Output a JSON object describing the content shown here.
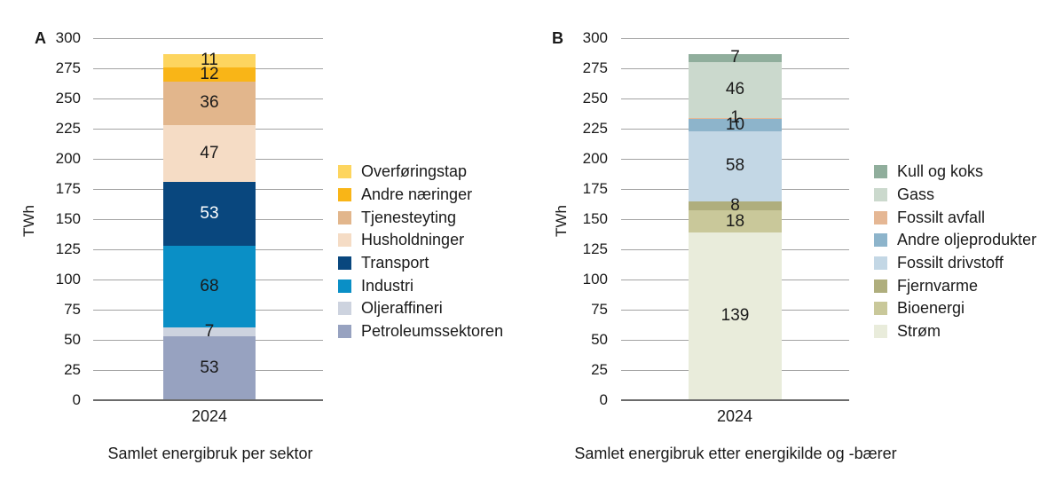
{
  "chart_data": [
    {
      "type": "bar",
      "stacked": true,
      "panel_label": "A",
      "title": "Samlet energibruk per sektor",
      "ylabel": "TWh",
      "categories": [
        "2024"
      ],
      "ylim": [
        0,
        300
      ],
      "ytick_interval": 25,
      "yticks": [
        0,
        25,
        50,
        75,
        100,
        125,
        150,
        175,
        200,
        225,
        250,
        275,
        300
      ],
      "grid": true,
      "legend_position": "right",
      "legend": [
        "Overføringstap",
        "Andre næringer",
        "Tjenesteyting",
        "Husholdninger",
        "Transport",
        "Industri",
        "Oljeraffineri",
        "Petroleumssektoren"
      ],
      "series": [
        {
          "name": "Petroleumssektoren",
          "value": 53,
          "color": "#97a2c0",
          "value_text_color": "#1a1a1a"
        },
        {
          "name": "Oljeraffineri",
          "value": 7,
          "color": "#cdd3df",
          "value_text_color": "#1a1a1a"
        },
        {
          "name": "Industri",
          "value": 68,
          "color": "#0a8fc6",
          "value_text_color": "#1a1a1a"
        },
        {
          "name": "Transport",
          "value": 53,
          "color": "#09477e",
          "value_text_color": "#ffffff"
        },
        {
          "name": "Husholdninger",
          "value": 47,
          "color": "#f5dcc5",
          "value_text_color": "#1a1a1a"
        },
        {
          "name": "Tjenesteyting",
          "value": 36,
          "color": "#e2b68c",
          "value_text_color": "#1a1a1a"
        },
        {
          "name": "Andre næringer",
          "value": 12,
          "color": "#f9b517",
          "value_text_color": "#1a1a1a"
        },
        {
          "name": "Overføringstap",
          "value": 11,
          "color": "#fdd55f",
          "value_text_color": "#1a1a1a"
        }
      ]
    },
    {
      "type": "bar",
      "stacked": true,
      "panel_label": "B",
      "title": "Samlet energibruk etter energikilde og -bærer",
      "ylabel": "TWh",
      "categories": [
        "2024"
      ],
      "ylim": [
        0,
        300
      ],
      "ytick_interval": 25,
      "yticks": [
        0,
        25,
        50,
        75,
        100,
        125,
        150,
        175,
        200,
        225,
        250,
        275,
        300
      ],
      "grid": true,
      "legend_position": "right",
      "legend": [
        "Kull og koks",
        "Gass",
        "Fossilt avfall",
        "Andre oljeprodukter",
        "Fossilt drivstoff",
        "Fjernvarme",
        "Bioenergi",
        "Strøm"
      ],
      "series": [
        {
          "name": "Strøm",
          "value": 139,
          "color": "#e9ecdb",
          "value_text_color": "#1a1a1a"
        },
        {
          "name": "Bioenergi",
          "value": 18,
          "color": "#c9c89a",
          "value_text_color": "#1a1a1a"
        },
        {
          "name": "Fjernvarme",
          "value": 8,
          "color": "#afae7d",
          "value_text_color": "#1a1a1a"
        },
        {
          "name": "Fossilt drivstoff",
          "value": 58,
          "color": "#c3d7e5",
          "value_text_color": "#1a1a1a"
        },
        {
          "name": "Andre oljeprodukter",
          "value": 10,
          "color": "#8db4cb",
          "value_text_color": "#1a1a1a"
        },
        {
          "name": "Fossilt avfall",
          "value": 1,
          "color": "#e5b794",
          "value_text_color": "#1a1a1a"
        },
        {
          "name": "Gass",
          "value": 46,
          "color": "#cbd9cd",
          "value_text_color": "#1a1a1a"
        },
        {
          "name": "Kull og koks",
          "value": 7,
          "color": "#90ae9c",
          "value_text_color": "#1a1a1a"
        }
      ]
    }
  ]
}
